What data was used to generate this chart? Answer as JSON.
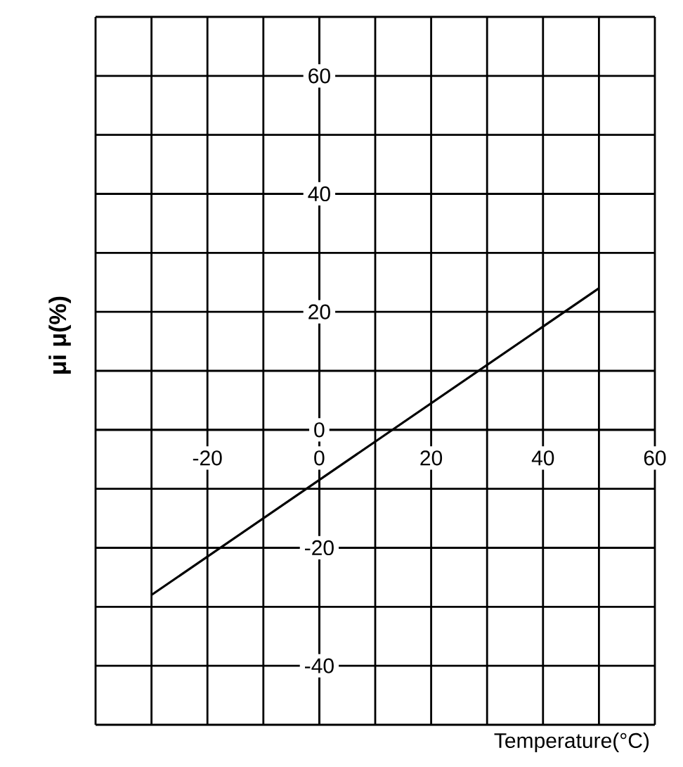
{
  "chart_data": {
    "type": "line",
    "xlabel": "Temperature(°C)",
    "ylabel": "μi μ(%)",
    "x": [
      -30,
      50
    ],
    "series": [
      {
        "color": "#000000",
        "values": [
          -28,
          24
        ]
      }
    ],
    "xlim": [
      -40,
      60
    ],
    "ylim": [
      -50,
      70
    ],
    "xticks": [
      {
        "value": -40,
        "label": null
      },
      {
        "value": -30,
        "label": null
      },
      -20,
      {
        "value": -10,
        "label": null
      },
      0,
      {
        "value": 10,
        "label": null
      },
      20,
      {
        "value": 30,
        "label": null
      },
      40,
      {
        "value": 50,
        "label": null
      },
      60
    ],
    "yticks": [
      {
        "value": -50,
        "label": null
      },
      -40,
      {
        "value": -30,
        "label": null
      },
      -20,
      {
        "value": -10,
        "label": null
      },
      0,
      {
        "value": 10,
        "label": null
      },
      20,
      {
        "value": 30,
        "label": null
      },
      40,
      {
        "value": 50,
        "label": null
      },
      60,
      {
        "value": 70,
        "label": null
      }
    ],
    "grid": true,
    "marker": "none",
    "line_style": "solid"
  }
}
